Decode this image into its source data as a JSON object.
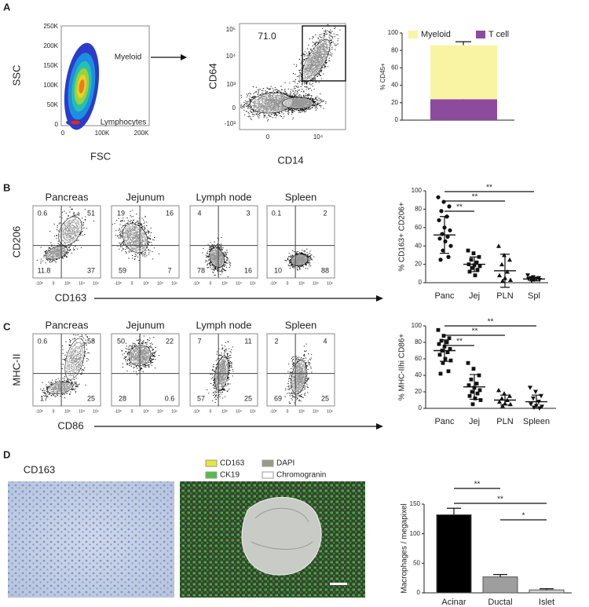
{
  "panel_labels": [
    "A",
    "B",
    "C",
    "D"
  ],
  "flows": {
    "A1": {
      "ylabel": "SSC",
      "xlabel": "FSC",
      "yticks": [
        "250K",
        "200K",
        "150K",
        "100K",
        "50K",
        "0"
      ],
      "xticks": [
        "0",
        "100K",
        "200K"
      ],
      "gates": [
        "Myeloid",
        "Lymphocytes"
      ]
    },
    "A2": {
      "ylabel": "CD64",
      "xlabel": "CD14",
      "gate_value": "71.0",
      "yticks": [
        "10⁵",
        "10⁴",
        "10³",
        "0",
        "-10³"
      ],
      "xticks": [
        "0",
        "10⁴"
      ]
    },
    "B": {
      "ylabel": "CD206",
      "xlabel": "CD163",
      "xticks": [
        "-10³",
        "0",
        "10³",
        "10⁴",
        "10⁵"
      ],
      "plots": [
        {
          "title": "Pancreas",
          "quadrants": [
            "0.6",
            "51",
            "11.8",
            "37"
          ]
        },
        {
          "title": "Jejunum",
          "quadrants": [
            "19",
            "16",
            "59",
            "7"
          ]
        },
        {
          "title": "Lymph node",
          "quadrants": [
            "4",
            "3",
            "78",
            "16"
          ]
        },
        {
          "title": "Spleen",
          "quadrants": [
            "0.1",
            "2",
            "10",
            "88"
          ]
        }
      ]
    },
    "C": {
      "ylabel": "MHC-II",
      "xlabel": "CD86",
      "xticks": [
        "-10³",
        "0",
        "10³",
        "10⁴",
        "10⁵"
      ],
      "plots": [
        {
          "title": "Pancreas",
          "quadrants": [
            "0.6",
            "58",
            "17",
            "25"
          ]
        },
        {
          "title": "Jejunum",
          "quadrants": [
            "50",
            "22",
            "28",
            "0.6"
          ]
        },
        {
          "title": "Lymph node",
          "quadrants": [
            "7",
            "11",
            "57",
            "25"
          ]
        },
        {
          "title": "Spleen",
          "quadrants": [
            "2",
            "4",
            "69",
            "25"
          ]
        }
      ]
    }
  },
  "images": {
    "ihc_label": "CD163",
    "if_legend": [
      "CD163",
      "DAPI",
      "CK19",
      "Chromogranin"
    ]
  },
  "chart_data": [
    {
      "type": "stacked-bar",
      "ylabel": "% CD45+",
      "categories": [
        null
      ],
      "ylim": [
        0,
        100
      ],
      "yticks": [
        0,
        20,
        40,
        60,
        80,
        100
      ],
      "series": [
        {
          "name": "T cell",
          "color": "#8c4b9d",
          "values": [
            24
          ],
          "errors": [
            3
          ]
        },
        {
          "name": "Myeloid",
          "color": "#f8f4a4",
          "values": [
            62
          ],
          "errors": [
            4
          ]
        }
      ]
    },
    {
      "type": "dot",
      "ylabel": "% CD163+ CD206+",
      "categories": [
        "Panc",
        "Jej",
        "PLN",
        "Spl"
      ],
      "ylim": [
        0,
        100
      ],
      "yticks": [
        0,
        20,
        40,
        60,
        80,
        100
      ],
      "markers": [
        "circle",
        "square",
        "triangle",
        "triangle-down"
      ],
      "points": [
        [
          93,
          88,
          83,
          78,
          72,
          68,
          60,
          57,
          53,
          50,
          48,
          45,
          40,
          35,
          28,
          25
        ],
        [
          35,
          32,
          28,
          25,
          22,
          20,
          19,
          18,
          16,
          14,
          12,
          8
        ],
        [
          40,
          30,
          25,
          20,
          12,
          8,
          5,
          3,
          2
        ],
        [
          8,
          6,
          5,
          5,
          4,
          4,
          3,
          3,
          2
        ]
      ],
      "means": [
        52,
        20,
        13,
        4
      ],
      "sds": [
        20,
        8,
        18,
        2
      ],
      "significance": [
        {
          "from": 0,
          "to": 1,
          "label": "**"
        },
        {
          "from": 0,
          "to": 2,
          "label": "**"
        },
        {
          "from": 0,
          "to": 3,
          "label": "**"
        }
      ]
    },
    {
      "type": "dot",
      "ylabel": "% MHC-IIhi CD86+",
      "categories": [
        "Panc",
        "Jej",
        "PLN",
        "Spleen"
      ],
      "ylim": [
        0,
        100
      ],
      "yticks": [
        0,
        20,
        40,
        60,
        80,
        100
      ],
      "markers": [
        "square",
        "square",
        "triangle",
        "triangle-down"
      ],
      "points": [
        [
          95,
          88,
          85,
          82,
          80,
          78,
          75,
          72,
          70,
          68,
          65,
          60,
          58,
          55,
          45,
          42
        ],
        [
          55,
          48,
          40,
          35,
          30,
          28,
          25,
          22,
          20,
          18,
          15,
          12,
          10,
          5
        ],
        [
          22,
          18,
          15,
          12,
          10,
          8,
          6,
          5,
          3
        ],
        [
          25,
          20,
          15,
          12,
          8,
          5,
          3,
          2,
          1,
          0
        ]
      ],
      "means": [
        70,
        26,
        10,
        8
      ],
      "sds": [
        13,
        15,
        6,
        8
      ],
      "significance": [
        {
          "from": 0,
          "to": 1,
          "label": "**"
        },
        {
          "from": 0,
          "to": 2,
          "label": "**"
        },
        {
          "from": 0,
          "to": 3,
          "label": "**"
        }
      ]
    },
    {
      "type": "bar",
      "ylabel": "Macrophages / megapixel",
      "categories": [
        "Acinar",
        "Ductal",
        "Islet"
      ],
      "ylim": [
        0,
        150
      ],
      "yticks": [
        0,
        50,
        100,
        150
      ],
      "values": [
        132,
        27,
        5
      ],
      "errors": [
        11,
        4,
        2
      ],
      "colors": [
        "#000000",
        "#9e9e9e",
        "#d2d2d2"
      ],
      "significance": [
        {
          "from": 0,
          "to": 1,
          "label": "**"
        },
        {
          "from": 0,
          "to": 2,
          "label": "**"
        },
        {
          "from": 1,
          "to": 2,
          "label": "*"
        }
      ]
    }
  ]
}
